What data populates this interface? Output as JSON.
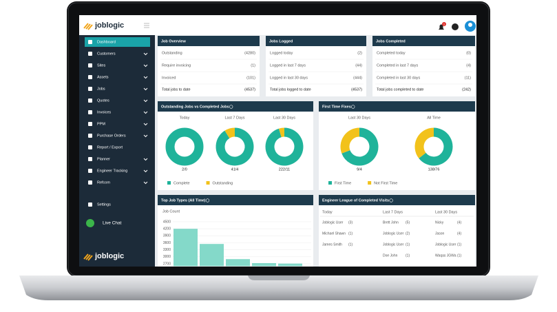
{
  "header": {
    "logo": "joblogic",
    "notifications": "1"
  },
  "sidebar": {
    "items": [
      {
        "label": "Dashboard",
        "active": true
      },
      {
        "label": "Customers",
        "expandable": true
      },
      {
        "label": "Sites",
        "expandable": true
      },
      {
        "label": "Assets",
        "expandable": true
      },
      {
        "label": "Jobs",
        "expandable": true
      },
      {
        "label": "Quotes",
        "expandable": true
      },
      {
        "label": "Invoices",
        "expandable": true
      },
      {
        "label": "PPM",
        "expandable": true
      },
      {
        "label": "Purchase Orders",
        "expandable": true
      },
      {
        "label": "Report / Export"
      },
      {
        "label": "Planner",
        "expandable": true
      },
      {
        "label": "Engineer Tracking",
        "expandable": true
      },
      {
        "label": "Refcom",
        "expandable": true
      }
    ],
    "settings": "Settings",
    "live_chat": "Live Chat",
    "logo": "joblogic"
  },
  "summary_panels": [
    {
      "title": "Job Overview",
      "rows": [
        [
          "Outstanding",
          "(4280)"
        ],
        [
          "Require invoicing",
          "(1)"
        ],
        [
          "Invoiced",
          "(101)"
        ]
      ],
      "total": [
        "Total jobs to date",
        "(4537)"
      ]
    },
    {
      "title": "Jobs Logged",
      "rows": [
        [
          "Logged today",
          "(2)"
        ],
        [
          "Logged in last 7 days",
          "(44)"
        ],
        [
          "Logged in last 30 days",
          "(444)"
        ]
      ],
      "total": [
        "Total jobs logged to date",
        "(4537)"
      ]
    },
    {
      "title": "Jobs Completed",
      "rows": [
        [
          "Completed today",
          "(0)"
        ],
        [
          "Completed in last 7 days",
          "(4)"
        ],
        [
          "Completed in last 30 days",
          "(11)"
        ]
      ],
      "total": [
        "Total jobs completed to date",
        "(242)"
      ]
    }
  ],
  "donut_panels": [
    {
      "title": "Outstanding Jobs vs Completed Jobs",
      "legend": [
        "Complete",
        "Outstanding"
      ],
      "colors": [
        "#1fb39a",
        "#f2c21b"
      ],
      "donuts": [
        {
          "label": "Today",
          "values": [
            2,
            0
          ],
          "value_label": "2/0"
        },
        {
          "label": "Last 7 Days",
          "values": [
            41,
            4
          ],
          "value_label": "41/4"
        },
        {
          "label": "Last 30 Days",
          "values": [
            222,
            11
          ],
          "value_label": "222/11"
        }
      ]
    },
    {
      "title": "First Time Fixes",
      "legend": [
        "First Time",
        "Not First Time"
      ],
      "colors": [
        "#1fb39a",
        "#f2c21b"
      ],
      "donuts": [
        {
          "label": "Last 30 Days",
          "values": [
            9,
            4
          ],
          "value_label": "9/4"
        },
        {
          "label": "All Time",
          "values": [
            138,
            76
          ],
          "value_label": "138/76"
        }
      ]
    }
  ],
  "bar_panel": {
    "title": "Top Job Types (All Time)",
    "y_label": "Job Count",
    "values": [
      4200,
      3550,
      2900,
      2730,
      2710
    ],
    "ylim": [
      2600,
      4500
    ],
    "yticks": [
      4500,
      4200,
      3900,
      3600,
      3300,
      3000,
      2700
    ],
    "color": "#84d9c9"
  },
  "league": {
    "title": "Engineer League of Completed Visits",
    "columns": [
      {
        "title": "Today",
        "rows": [
          [
            "Joblogic User",
            "(3)"
          ],
          [
            "Michael Shawn",
            "(1)"
          ],
          [
            "James Smith",
            "(1)"
          ]
        ]
      },
      {
        "title": "Last 7 Days",
        "rows": [
          [
            "Brett John",
            "(5)"
          ],
          [
            "Joblogic User",
            "(2)"
          ],
          [
            "Joblogic User",
            "(1)"
          ],
          [
            "Doe John",
            "(1)"
          ]
        ]
      },
      {
        "title": "Last 30 Days",
        "rows": [
          [
            "Nicky",
            "(4)"
          ],
          [
            "Jason",
            "(4)"
          ],
          [
            "Joblogic User",
            "(1)"
          ],
          [
            "Waqas JGWa",
            "(1)"
          ]
        ]
      }
    ]
  }
}
